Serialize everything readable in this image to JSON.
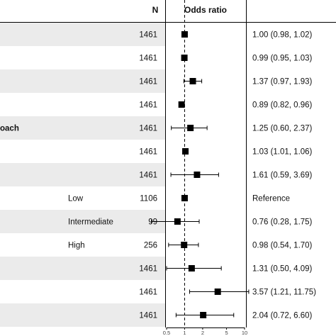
{
  "headers": {
    "n": "N",
    "odds_ratio": "Odds ratio"
  },
  "colors": {
    "stripe": "#ebebeb",
    "marker": "#000000",
    "line": "#000000"
  },
  "chart_data": {
    "type": "forest",
    "x_scale": "log",
    "reference_line": 1,
    "xlim": [
      0.5,
      10
    ],
    "xticks": [
      "0.5",
      "1",
      "2",
      "5",
      "10"
    ],
    "rows": [
      {
        "label": "",
        "sublabel": "",
        "n": "1461",
        "or": 1.0,
        "lo": 0.98,
        "hi": 1.02,
        "text": "1.00 (0.98, 1.02)"
      },
      {
        "label": "",
        "sublabel": "",
        "n": "1461",
        "or": 0.99,
        "lo": 0.95,
        "hi": 1.03,
        "text": "0.99 (0.95, 1.03)"
      },
      {
        "label": "",
        "sublabel": "",
        "n": "1461",
        "or": 1.37,
        "lo": 0.97,
        "hi": 1.93,
        "text": "1.37 (0.97, 1.93)"
      },
      {
        "label": "",
        "sublabel": "",
        "n": "1461",
        "or": 0.89,
        "lo": 0.82,
        "hi": 0.96,
        "text": "0.89 (0.82, 0.96)"
      },
      {
        "label": "oach",
        "sublabel": "",
        "n": "1461",
        "or": 1.25,
        "lo": 0.6,
        "hi": 2.37,
        "text": "1.25 (0.60, 2.37)"
      },
      {
        "label": "",
        "sublabel": "",
        "n": "1461",
        "or": 1.03,
        "lo": 1.01,
        "hi": 1.06,
        "text": "1.03 (1.01, 1.06)"
      },
      {
        "label": "",
        "sublabel": "",
        "n": "1461",
        "or": 1.61,
        "lo": 0.59,
        "hi": 3.69,
        "text": "1.61 (0.59, 3.69)"
      },
      {
        "label": "",
        "sublabel": "Low",
        "n": "1106",
        "or": 1.0,
        "lo": null,
        "hi": null,
        "text": "Reference"
      },
      {
        "label": "",
        "sublabel": "Intermediate",
        "n": "99",
        "or": 0.76,
        "lo": 0.28,
        "hi": 1.75,
        "text": "0.76 (0.28, 1.75)"
      },
      {
        "label": "",
        "sublabel": "High",
        "n": "256",
        "or": 0.98,
        "lo": 0.54,
        "hi": 1.7,
        "text": "0.98 (0.54, 1.70)"
      },
      {
        "label": "",
        "sublabel": "",
        "n": "1461",
        "or": 1.31,
        "lo": 0.5,
        "hi": 4.09,
        "text": "1.31 (0.50, 4.09)"
      },
      {
        "label": "",
        "sublabel": "",
        "n": "1461",
        "or": 3.57,
        "lo": 1.21,
        "hi": 11.75,
        "text": "3.57 (1.21, 11.75)"
      },
      {
        "label": "",
        "sublabel": "",
        "n": "1461",
        "or": 2.04,
        "lo": 0.72,
        "hi": 6.6,
        "text": "2.04 (0.72, 6.60)"
      }
    ]
  }
}
